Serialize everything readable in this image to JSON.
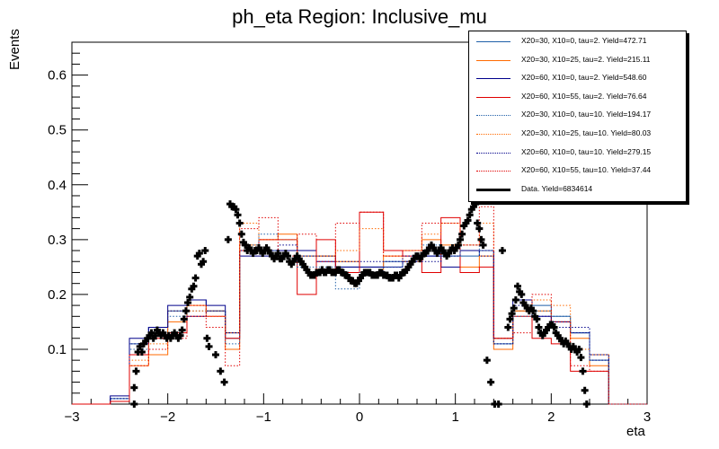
{
  "chart_data": {
    "type": "line",
    "title": "ph_eta Region: Inclusive_mu",
    "xlabel": "eta",
    "ylabel": "Events",
    "xlim": [
      -3.0,
      3.0
    ],
    "ylim": [
      0.0,
      0.66
    ],
    "xticks": [
      -3,
      -2,
      -1,
      0,
      1,
      2,
      3
    ],
    "yticks": [
      0.1,
      0.2,
      0.3,
      0.4,
      0.5,
      0.6
    ],
    "xtick_labels": [
      "−3",
      "−2",
      "−1",
      "0",
      "1",
      "2",
      "3"
    ],
    "ytick_labels": [
      "0.1",
      "0.2",
      "0.3",
      "0.4",
      "0.5",
      "0.6"
    ],
    "bin_edges": [
      -3.0,
      -2.8,
      -2.6,
      -2.4,
      -2.2,
      -2.0,
      -1.8,
      -1.6,
      -1.4,
      -1.25,
      -1.05,
      -0.85,
      -0.65,
      -0.45,
      -0.25,
      0.0,
      0.25,
      0.45,
      0.65,
      0.85,
      1.05,
      1.25,
      1.4,
      1.6,
      1.8,
      2.0,
      2.2,
      2.4,
      2.6,
      2.8,
      3.0
    ],
    "series": [
      {
        "name": "X20=30, X10=0, tau=2. Yield=472.71",
        "color": "#1f5fa8",
        "style": "solid",
        "values": [
          0,
          0,
          0.01,
          0.11,
          0.14,
          0.17,
          0.19,
          0.17,
          0.12,
          0.28,
          0.28,
          0.28,
          0.27,
          0.27,
          0.25,
          0.25,
          0.26,
          0.26,
          0.27,
          0.27,
          0.27,
          0.28,
          0.11,
          0.17,
          0.18,
          0.16,
          0.13,
          0.08,
          0,
          0,
          0
        ]
      },
      {
        "name": "X20=30, X10=25, tau=2. Yield=215.11",
        "color": "#ff6a00",
        "style": "solid",
        "values": [
          0,
          0,
          0.005,
          0.07,
          0.09,
          0.15,
          0.18,
          0.17,
          0.1,
          0.29,
          0.3,
          0.31,
          0.28,
          0.27,
          0.26,
          0.24,
          0.27,
          0.28,
          0.3,
          0.29,
          0.25,
          0.27,
          0.1,
          0.17,
          0.17,
          0.15,
          0.12,
          0.07,
          0,
          0,
          0
        ]
      },
      {
        "name": "X20=60, X10=0, tau=2. Yield=548.60",
        "color": "#00008b",
        "style": "solid",
        "values": [
          0,
          0,
          0.015,
          0.12,
          0.14,
          0.18,
          0.19,
          0.18,
          0.13,
          0.27,
          0.27,
          0.28,
          0.28,
          0.26,
          0.25,
          0.25,
          0.25,
          0.26,
          0.27,
          0.25,
          0.28,
          0.28,
          0.12,
          0.19,
          0.16,
          0.15,
          0.13,
          0.09,
          0,
          0,
          0
        ]
      },
      {
        "name": "X20=60, X10=55, tau=2. Yield=76.64",
        "color": "#e00000",
        "style": "solid",
        "values": [
          0,
          0,
          0.005,
          0.09,
          0.12,
          0.13,
          0.16,
          0.16,
          0.12,
          0.28,
          0.3,
          0.3,
          0.2,
          0.3,
          0.24,
          0.35,
          0.28,
          0.27,
          0.24,
          0.34,
          0.24,
          0.25,
          0.12,
          0.16,
          0.12,
          0.11,
          0.06,
          0.06,
          0,
          0,
          0
        ]
      },
      {
        "name": "X20=30, X10=0, tau=10. Yield=194.17",
        "color": "#1f5fa8",
        "style": "dotted",
        "values": [
          0,
          0,
          0.01,
          0.1,
          0.13,
          0.16,
          0.17,
          0.17,
          0.11,
          0.29,
          0.31,
          0.3,
          0.25,
          0.25,
          0.21,
          0.24,
          0.25,
          0.26,
          0.29,
          0.27,
          0.29,
          0.28,
          0.11,
          0.16,
          0.17,
          0.16,
          0.13,
          0.08,
          0,
          0,
          0
        ]
      },
      {
        "name": "X20=30, X10=25, tau=10. Yield=80.03",
        "color": "#ff6a00",
        "style": "dotted",
        "values": [
          0,
          0,
          0.005,
          0.08,
          0.11,
          0.17,
          0.17,
          0.16,
          0.13,
          0.33,
          0.3,
          0.3,
          0.27,
          0.27,
          0.28,
          0.32,
          0.27,
          0.26,
          0.31,
          0.33,
          0.29,
          0.33,
          0.12,
          0.17,
          0.19,
          0.18,
          0.1,
          0.09,
          0,
          0,
          0
        ]
      },
      {
        "name": "X20=60, X10=0, tau=10. Yield=279.15",
        "color": "#00008b",
        "style": "dotted",
        "values": [
          0,
          0,
          0.01,
          0.11,
          0.14,
          0.17,
          0.16,
          0.17,
          0.13,
          0.28,
          0.28,
          0.29,
          0.27,
          0.27,
          0.26,
          0.26,
          0.26,
          0.27,
          0.26,
          0.27,
          0.28,
          0.27,
          0.11,
          0.18,
          0.16,
          0.14,
          0.14,
          0.08,
          0,
          0,
          0
        ]
      },
      {
        "name": "X20=60, X10=55, tau=10. Yield=37.44",
        "color": "#e00000",
        "style": "dotted",
        "values": [
          0,
          0,
          0.005,
          0.07,
          0.1,
          0.12,
          0.18,
          0.14,
          0.07,
          0.32,
          0.34,
          0.27,
          0.31,
          0.26,
          0.33,
          0.35,
          0.27,
          0.28,
          0.33,
          0.33,
          0.29,
          0.36,
          0.12,
          0.13,
          0.2,
          0.15,
          0.07,
          0.06,
          0,
          0,
          0
        ]
      },
      {
        "name": "Data. Yield=6834614",
        "color": "#000000",
        "style": "markers",
        "points": [
          [
            -2.35,
            0.0
          ],
          [
            -2.35,
            0.03
          ],
          [
            -2.33,
            0.06
          ],
          [
            -2.31,
            0.095
          ],
          [
            -2.29,
            0.105
          ],
          [
            -2.27,
            0.095
          ],
          [
            -2.25,
            0.11
          ],
          [
            -2.23,
            0.115
          ],
          [
            -2.21,
            0.12
          ],
          [
            -2.19,
            0.125
          ],
          [
            -2.17,
            0.13
          ],
          [
            -2.15,
            0.12
          ],
          [
            -2.13,
            0.125
          ],
          [
            -2.11,
            0.135
          ],
          [
            -2.09,
            0.13
          ],
          [
            -2.07,
            0.125
          ],
          [
            -2.05,
            0.13
          ],
          [
            -2.03,
            0.125
          ],
          [
            -2.01,
            0.12
          ],
          [
            -1.99,
            0.125
          ],
          [
            -1.97,
            0.12
          ],
          [
            -1.95,
            0.125
          ],
          [
            -1.93,
            0.13
          ],
          [
            -1.91,
            0.125
          ],
          [
            -1.89,
            0.12
          ],
          [
            -1.87,
            0.125
          ],
          [
            -1.85,
            0.135
          ],
          [
            -1.83,
            0.155
          ],
          [
            -1.81,
            0.17
          ],
          [
            -1.79,
            0.185
          ],
          [
            -1.77,
            0.195
          ],
          [
            -1.75,
            0.21
          ],
          [
            -1.73,
            0.215
          ],
          [
            -1.71,
            0.23
          ],
          [
            -1.69,
            0.27
          ],
          [
            -1.67,
            0.275
          ],
          [
            -1.65,
            0.255
          ],
          [
            -1.63,
            0.26
          ],
          [
            -1.61,
            0.28
          ],
          [
            -1.59,
            0.12
          ],
          [
            -1.57,
            0.105
          ],
          [
            -1.5,
            0.09
          ],
          [
            -1.45,
            0.06
          ],
          [
            -1.41,
            0.04
          ],
          [
            -1.37,
            0.3
          ],
          [
            -1.35,
            0.365
          ],
          [
            -1.33,
            0.36
          ],
          [
            -1.31,
            0.36
          ],
          [
            -1.29,
            0.355
          ],
          [
            -1.27,
            0.345
          ],
          [
            -1.25,
            0.33
          ],
          [
            -1.23,
            0.31
          ],
          [
            -1.21,
            0.295
          ],
          [
            -1.19,
            0.29
          ],
          [
            -1.17,
            0.28
          ],
          [
            -1.15,
            0.285
          ],
          [
            -1.13,
            0.28
          ],
          [
            -1.11,
            0.275
          ],
          [
            -1.09,
            0.28
          ],
          [
            -1.07,
            0.28
          ],
          [
            -1.05,
            0.285
          ],
          [
            -1.03,
            0.28
          ],
          [
            -1.01,
            0.275
          ],
          [
            -0.99,
            0.28
          ],
          [
            -0.97,
            0.285
          ],
          [
            -0.95,
            0.28
          ],
          [
            -0.93,
            0.275
          ],
          [
            -0.91,
            0.27
          ],
          [
            -0.89,
            0.265
          ],
          [
            -0.87,
            0.27
          ],
          [
            -0.85,
            0.275
          ],
          [
            -0.83,
            0.265
          ],
          [
            -0.81,
            0.265
          ],
          [
            -0.79,
            0.27
          ],
          [
            -0.77,
            0.275
          ],
          [
            -0.75,
            0.27
          ],
          [
            -0.73,
            0.26
          ],
          [
            -0.71,
            0.255
          ],
          [
            -0.69,
            0.26
          ],
          [
            -0.67,
            0.265
          ],
          [
            -0.65,
            0.27
          ],
          [
            -0.63,
            0.265
          ],
          [
            -0.61,
            0.26
          ],
          [
            -0.59,
            0.255
          ],
          [
            -0.57,
            0.25
          ],
          [
            -0.55,
            0.245
          ],
          [
            -0.53,
            0.24
          ],
          [
            -0.51,
            0.235
          ],
          [
            -0.49,
            0.235
          ],
          [
            -0.47,
            0.235
          ],
          [
            -0.45,
            0.24
          ],
          [
            -0.43,
            0.24
          ],
          [
            -0.41,
            0.24
          ],
          [
            -0.39,
            0.245
          ],
          [
            -0.37,
            0.24
          ],
          [
            -0.35,
            0.24
          ],
          [
            -0.33,
            0.245
          ],
          [
            -0.31,
            0.245
          ],
          [
            -0.29,
            0.24
          ],
          [
            -0.27,
            0.24
          ],
          [
            -0.25,
            0.24
          ],
          [
            -0.23,
            0.245
          ],
          [
            -0.21,
            0.245
          ],
          [
            -0.19,
            0.24
          ],
          [
            -0.17,
            0.24
          ],
          [
            -0.15,
            0.235
          ],
          [
            -0.13,
            0.235
          ],
          [
            -0.11,
            0.23
          ],
          [
            -0.09,
            0.225
          ],
          [
            -0.07,
            0.225
          ],
          [
            -0.05,
            0.22
          ],
          [
            -0.03,
            0.22
          ],
          [
            -0.01,
            0.225
          ],
          [
            0.01,
            0.23
          ],
          [
            0.03,
            0.235
          ],
          [
            0.05,
            0.24
          ],
          [
            0.07,
            0.24
          ],
          [
            0.09,
            0.24
          ],
          [
            0.11,
            0.24
          ],
          [
            0.13,
            0.235
          ],
          [
            0.15,
            0.235
          ],
          [
            0.17,
            0.235
          ],
          [
            0.19,
            0.235
          ],
          [
            0.21,
            0.24
          ],
          [
            0.23,
            0.24
          ],
          [
            0.25,
            0.235
          ],
          [
            0.27,
            0.235
          ],
          [
            0.29,
            0.235
          ],
          [
            0.31,
            0.23
          ],
          [
            0.33,
            0.23
          ],
          [
            0.35,
            0.23
          ],
          [
            0.37,
            0.235
          ],
          [
            0.39,
            0.235
          ],
          [
            0.41,
            0.23
          ],
          [
            0.43,
            0.235
          ],
          [
            0.45,
            0.24
          ],
          [
            0.47,
            0.24
          ],
          [
            0.49,
            0.245
          ],
          [
            0.51,
            0.25
          ],
          [
            0.53,
            0.255
          ],
          [
            0.55,
            0.26
          ],
          [
            0.57,
            0.265
          ],
          [
            0.59,
            0.27
          ],
          [
            0.61,
            0.27
          ],
          [
            0.63,
            0.265
          ],
          [
            0.65,
            0.27
          ],
          [
            0.67,
            0.275
          ],
          [
            0.69,
            0.275
          ],
          [
            0.71,
            0.28
          ],
          [
            0.73,
            0.285
          ],
          [
            0.75,
            0.29
          ],
          [
            0.77,
            0.285
          ],
          [
            0.79,
            0.28
          ],
          [
            0.81,
            0.275
          ],
          [
            0.83,
            0.28
          ],
          [
            0.85,
            0.285
          ],
          [
            0.87,
            0.28
          ],
          [
            0.89,
            0.275
          ],
          [
            0.91,
            0.27
          ],
          [
            0.93,
            0.275
          ],
          [
            0.95,
            0.28
          ],
          [
            0.97,
            0.285
          ],
          [
            0.99,
            0.28
          ],
          [
            1.01,
            0.285
          ],
          [
            1.03,
            0.29
          ],
          [
            1.05,
            0.3
          ],
          [
            1.07,
            0.31
          ],
          [
            1.09,
            0.325
          ],
          [
            1.11,
            0.33
          ],
          [
            1.13,
            0.335
          ],
          [
            1.15,
            0.345
          ],
          [
            1.17,
            0.355
          ],
          [
            1.19,
            0.36
          ],
          [
            1.21,
            0.365
          ],
          [
            1.23,
            0.33
          ],
          [
            1.25,
            0.32
          ],
          [
            1.27,
            0.3
          ],
          [
            1.29,
            0.29
          ],
          [
            1.33,
            0.08
          ],
          [
            1.37,
            0.04
          ],
          [
            1.41,
            0.0
          ],
          [
            1.45,
            0.0
          ],
          [
            1.49,
            0.28
          ],
          [
            1.55,
            0.14
          ],
          [
            1.57,
            0.155
          ],
          [
            1.59,
            0.165
          ],
          [
            1.61,
            0.175
          ],
          [
            1.63,
            0.19
          ],
          [
            1.65,
            0.215
          ],
          [
            1.67,
            0.205
          ],
          [
            1.69,
            0.2
          ],
          [
            1.71,
            0.185
          ],
          [
            1.73,
            0.18
          ],
          [
            1.75,
            0.175
          ],
          [
            1.77,
            0.17
          ],
          [
            1.79,
            0.175
          ],
          [
            1.81,
            0.17
          ],
          [
            1.83,
            0.16
          ],
          [
            1.85,
            0.155
          ],
          [
            1.87,
            0.14
          ],
          [
            1.89,
            0.13
          ],
          [
            1.91,
            0.125
          ],
          [
            1.93,
            0.13
          ],
          [
            1.95,
            0.135
          ],
          [
            1.97,
            0.14
          ],
          [
            1.99,
            0.145
          ],
          [
            2.01,
            0.145
          ],
          [
            2.03,
            0.14
          ],
          [
            2.05,
            0.13
          ],
          [
            2.07,
            0.125
          ],
          [
            2.09,
            0.12
          ],
          [
            2.11,
            0.115
          ],
          [
            2.13,
            0.11
          ],
          [
            2.15,
            0.115
          ],
          [
            2.17,
            0.11
          ],
          [
            2.19,
            0.105
          ],
          [
            2.21,
            0.1
          ],
          [
            2.23,
            0.105
          ],
          [
            2.25,
            0.1
          ],
          [
            2.27,
            0.095
          ],
          [
            2.29,
            0.1
          ],
          [
            2.31,
            0.085
          ],
          [
            2.33,
            0.06
          ],
          [
            2.35,
            0.025
          ],
          [
            2.37,
            0.0
          ]
        ]
      }
    ]
  }
}
